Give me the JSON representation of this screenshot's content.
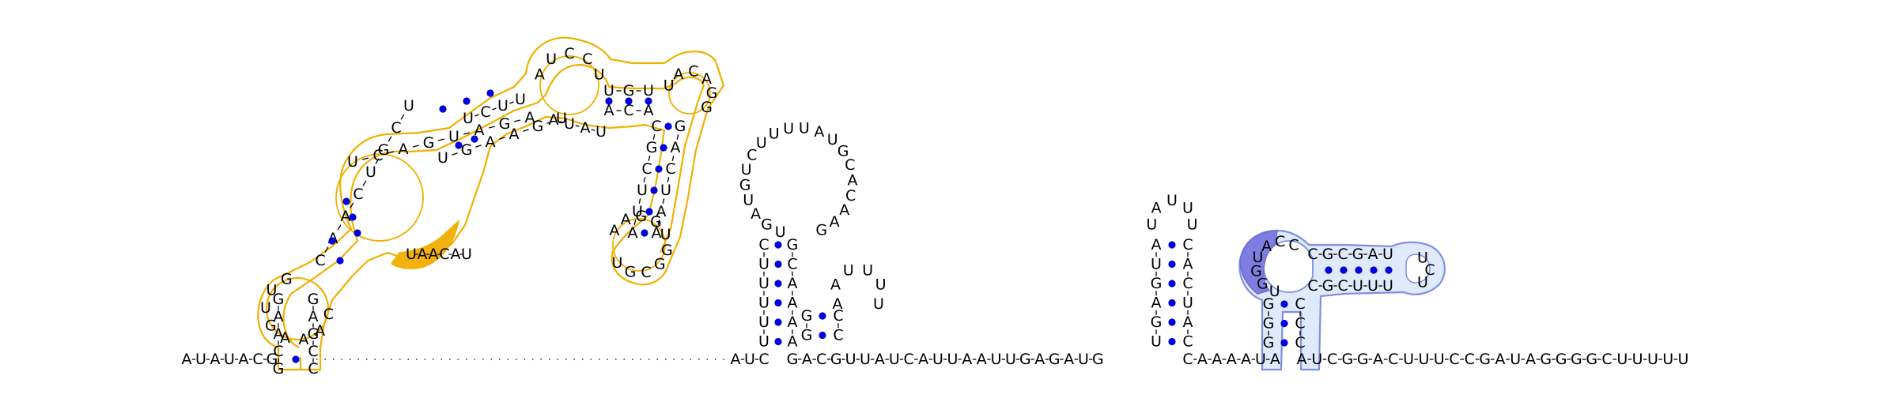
{
  "diagram": {
    "colors": {
      "module_yellow_outline": "#f0b000",
      "module_yellow_fill": "#f3b10e",
      "module_blue_outline": "#7f8fe0",
      "module_blue_fill": "#cfe0fa",
      "module_purple_fill": "#7e7ee0",
      "base_pair_dot": "#0000dd",
      "nucleotide_text": "#000000"
    },
    "segments": {
      "s1": "AUAUACG",
      "s2": "CUUAUC",
      "s3": "GACGUUAUCAUUAAUUGAGAUG",
      "s4": "CAAAAUA",
      "s5": "AUCGGACUUUCCGAUAGGGGCUUUUU"
    }
  }
}
